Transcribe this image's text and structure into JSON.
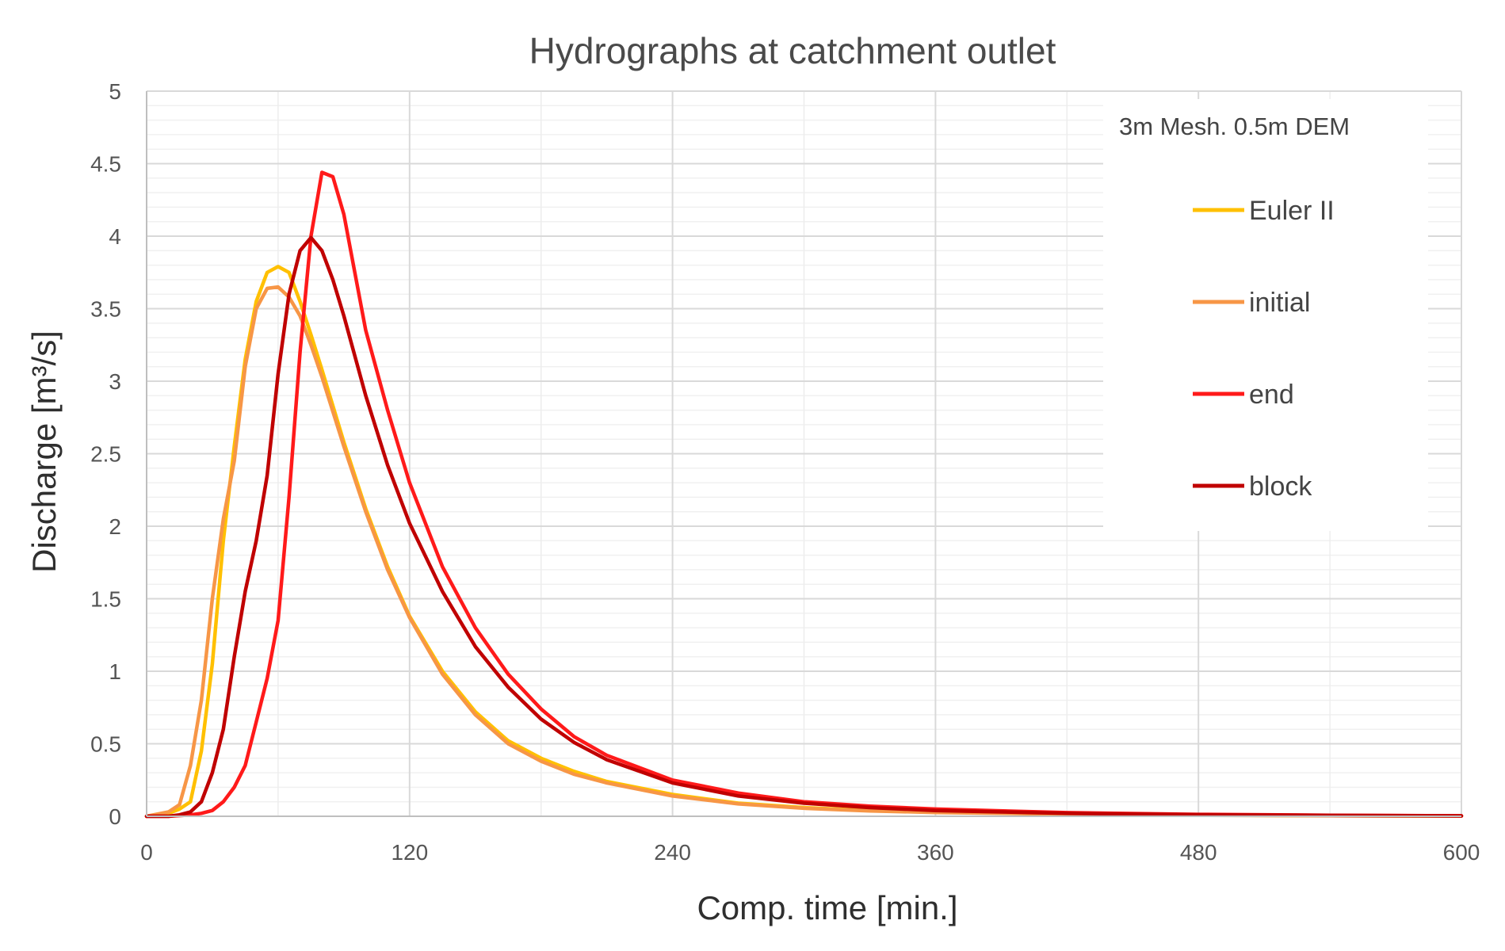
{
  "chart_data": {
    "type": "line",
    "title": "Hydrographs at catchment outlet",
    "xlabel": "Comp. time [min.]",
    "ylabel": "Discharge [m³/s]",
    "annotation": "3m Mesh. 0.5m DEM",
    "xlim": [
      0,
      600
    ],
    "ylim": [
      0,
      5
    ],
    "xticks": [
      "0",
      "120",
      "240",
      "360",
      "480",
      "600"
    ],
    "yticks": [
      "0",
      "0.5",
      "1",
      "1.5",
      "2",
      "2.5",
      "3",
      "3.5",
      "4",
      "4.5",
      "5"
    ],
    "grid": true,
    "legend_position": "right",
    "series": [
      {
        "name": "Euler II",
        "color": "#FFC000",
        "x": [
          0,
          10,
          15,
          20,
          25,
          30,
          35,
          40,
          45,
          50,
          55,
          60,
          65,
          70,
          75,
          80,
          90,
          100,
          110,
          120,
          135,
          150,
          165,
          180,
          195,
          210,
          240,
          270,
          300,
          330,
          360,
          420,
          480,
          540,
          600
        ],
        "y": [
          0,
          0.02,
          0.05,
          0.1,
          0.45,
          1.05,
          1.9,
          2.55,
          3.15,
          3.55,
          3.75,
          3.79,
          3.75,
          3.55,
          3.32,
          3.08,
          2.58,
          2.12,
          1.72,
          1.38,
          1.0,
          0.72,
          0.52,
          0.4,
          0.31,
          0.24,
          0.15,
          0.09,
          0.06,
          0.04,
          0.03,
          0.015,
          0.008,
          0.004,
          0.002
        ]
      },
      {
        "name": "initial",
        "color": "#F79646",
        "x": [
          0,
          10,
          15,
          20,
          25,
          30,
          35,
          40,
          45,
          50,
          55,
          60,
          65,
          70,
          75,
          80,
          90,
          100,
          110,
          120,
          135,
          150,
          165,
          180,
          195,
          210,
          240,
          270,
          300,
          330,
          360,
          420,
          480,
          540,
          600
        ],
        "y": [
          0,
          0.03,
          0.08,
          0.35,
          0.8,
          1.5,
          2.05,
          2.45,
          3.1,
          3.5,
          3.64,
          3.65,
          3.58,
          3.45,
          3.25,
          3.03,
          2.55,
          2.1,
          1.7,
          1.37,
          0.98,
          0.7,
          0.5,
          0.38,
          0.29,
          0.23,
          0.14,
          0.085,
          0.055,
          0.037,
          0.026,
          0.014,
          0.007,
          0.004,
          0.002
        ]
      },
      {
        "name": "end",
        "color": "#FF1A1A",
        "x": [
          0,
          10,
          20,
          25,
          30,
          35,
          40,
          45,
          50,
          55,
          60,
          65,
          70,
          75,
          80,
          85,
          90,
          95,
          100,
          110,
          120,
          135,
          150,
          165,
          180,
          195,
          210,
          240,
          270,
          300,
          330,
          360,
          420,
          480,
          540,
          600
        ],
        "y": [
          0,
          0.0,
          0.01,
          0.02,
          0.04,
          0.1,
          0.2,
          0.35,
          0.65,
          0.95,
          1.35,
          2.2,
          3.2,
          4.0,
          4.44,
          4.41,
          4.15,
          3.75,
          3.35,
          2.8,
          2.3,
          1.72,
          1.3,
          0.98,
          0.74,
          0.55,
          0.42,
          0.25,
          0.16,
          0.1,
          0.07,
          0.05,
          0.025,
          0.013,
          0.007,
          0.003
        ]
      },
      {
        "name": "block",
        "color": "#C00000",
        "x": [
          0,
          10,
          15,
          20,
          25,
          30,
          35,
          40,
          45,
          50,
          55,
          60,
          65,
          70,
          75,
          80,
          85,
          90,
          100,
          110,
          120,
          135,
          150,
          165,
          180,
          195,
          210,
          240,
          270,
          300,
          330,
          360,
          420,
          480,
          540,
          600
        ],
        "y": [
          0,
          0.0,
          0.01,
          0.03,
          0.1,
          0.3,
          0.6,
          1.1,
          1.55,
          1.9,
          2.35,
          3.05,
          3.6,
          3.9,
          3.99,
          3.9,
          3.7,
          3.45,
          2.9,
          2.42,
          2.02,
          1.55,
          1.17,
          0.89,
          0.67,
          0.51,
          0.39,
          0.23,
          0.14,
          0.09,
          0.06,
          0.04,
          0.02,
          0.011,
          0.006,
          0.003
        ]
      }
    ]
  }
}
